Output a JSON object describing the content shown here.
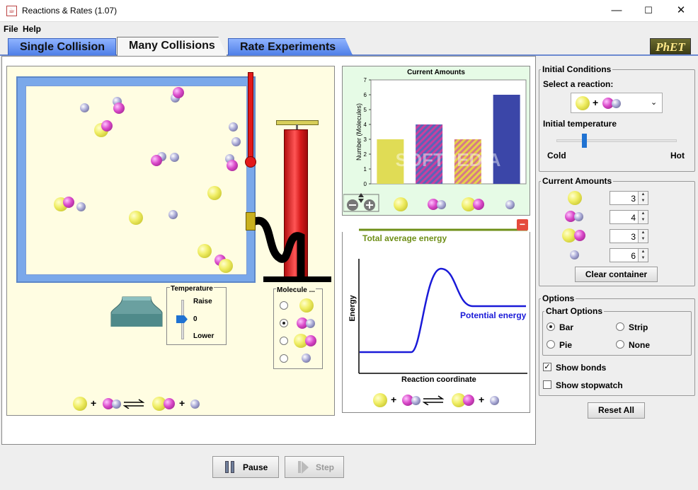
{
  "window": {
    "title": "Reactions & Rates (1.07)",
    "app_icon": "java-icon",
    "controls": [
      "minimize-icon",
      "maximize-icon",
      "close-icon"
    ]
  },
  "menu": {
    "items": [
      "File",
      "Help"
    ]
  },
  "tabs": [
    {
      "label": "Single Collision",
      "active": false
    },
    {
      "label": "Many Collisions",
      "active": true
    },
    {
      "label": "Rate Experiments",
      "active": false
    }
  ],
  "logo": {
    "text": "PhET"
  },
  "simulation": {
    "temperature_control": {
      "title": "Temperature",
      "raise": "Raise",
      "zero": "0",
      "lower": "Lower"
    },
    "molecule_selector": {
      "title": "Molecule ...",
      "selected_index": 1
    },
    "equation": {
      "plus1": "+",
      "plus2": "+"
    }
  },
  "chart": {
    "title": "Current Amounts",
    "ylabel": "Number (Molecules)",
    "watermark": "SOFTPEDIA"
  },
  "chart_data": {
    "type": "bar",
    "title": "Current Amounts",
    "ylabel": "Number (Molecules)",
    "ylim": [
      0,
      7
    ],
    "yticks": [
      0,
      1,
      2,
      3,
      4,
      5,
      6,
      7
    ],
    "categories": [
      "A",
      "BC",
      "AB",
      "C"
    ],
    "values": [
      3,
      4,
      3,
      6
    ],
    "colors": [
      "#e0dc55",
      "#b65a9e",
      "#e0b23a",
      "#3b46a8"
    ],
    "grid": false
  },
  "energy": {
    "total_label": "Total average energy",
    "potential_label": "Potential energy",
    "xlabel": "Reaction coordinate",
    "ylabel": "Energy",
    "close_symbol": "−"
  },
  "right_panel": {
    "initial_conditions": {
      "title": "Initial Conditions",
      "select_label": "Select a reaction:",
      "temperature_label": "Initial temperature",
      "cold": "Cold",
      "hot": "Hot",
      "temperature_level": 0.22
    },
    "current_amounts": {
      "title": "Current Amounts",
      "rows": [
        {
          "molecule": "A",
          "value": "3"
        },
        {
          "molecule": "BC",
          "value": "4"
        },
        {
          "molecule": "AB",
          "value": "3"
        },
        {
          "molecule": "C",
          "value": "6"
        }
      ],
      "clear_button": "Clear container"
    },
    "options": {
      "title": "Options",
      "chart_options_title": "Chart Options",
      "chart_types": [
        {
          "label": "Bar",
          "checked": true
        },
        {
          "label": "Strip",
          "checked": false
        },
        {
          "label": "Pie",
          "checked": false
        },
        {
          "label": "None",
          "checked": false
        }
      ],
      "show_bonds": {
        "label": "Show bonds",
        "checked": true
      },
      "show_stopwatch": {
        "label": "Show stopwatch",
        "checked": false
      }
    },
    "reset_button": "Reset All"
  },
  "bottom": {
    "pause": "Pause",
    "step": "Step"
  },
  "colors": {
    "tab_blue": "#5b86ee",
    "sim_bg": "#fffde2",
    "chart_bg": "#e6fbe6",
    "total_energy": "#6f8f18",
    "potential_energy": "#1a1ad8",
    "accent": "#1f72d2"
  }
}
